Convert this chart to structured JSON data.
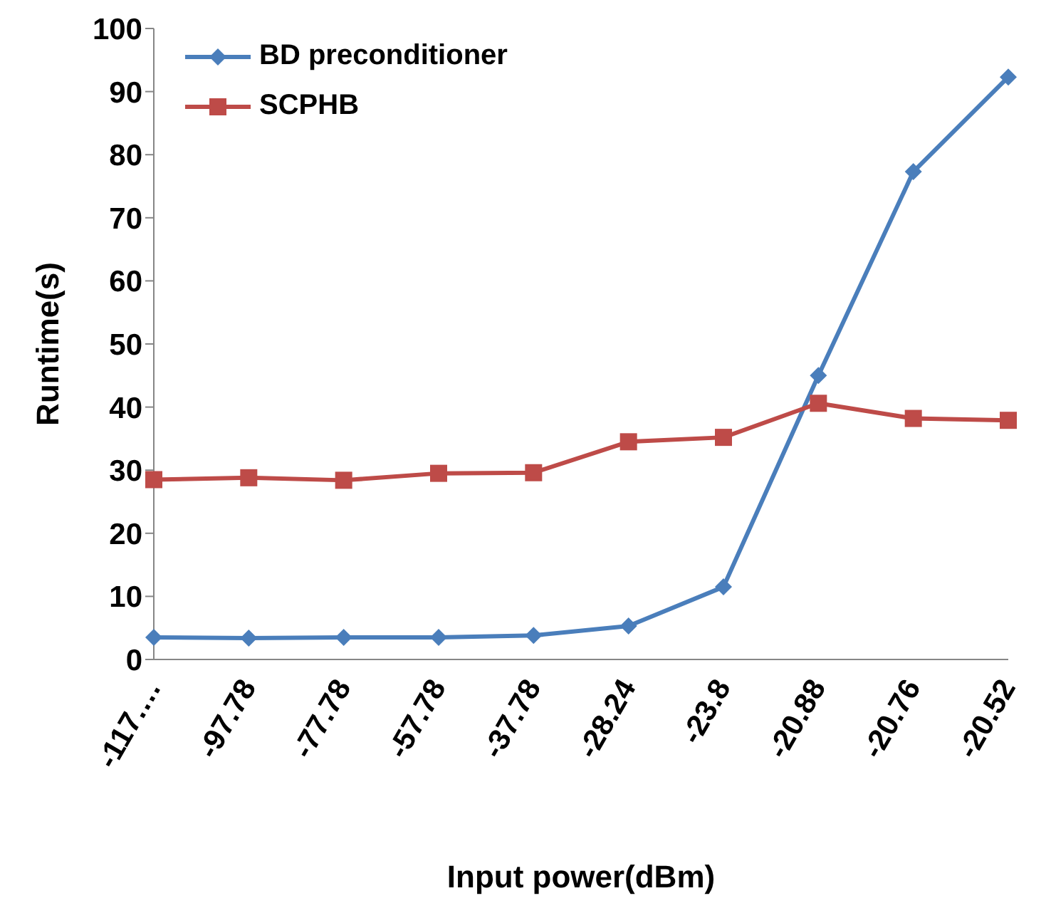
{
  "chart_data": {
    "type": "line",
    "xlabel": "Input power(dBm)",
    "ylabel": "Runtime(s)",
    "categories": [
      "-117.…",
      "-97.78",
      "-77.78",
      "-57.78",
      "-37.78",
      "-28.24",
      "-23.8",
      "-20.88",
      "-20.76",
      "-20.52"
    ],
    "series": [
      {
        "name": "BD preconditioner",
        "color": "#4a7ebb",
        "marker": "diamond",
        "values": [
          3.5,
          3.4,
          3.5,
          3.5,
          3.8,
          5.3,
          11.5,
          45,
          77.3,
          92.3
        ]
      },
      {
        "name": "SCPHB",
        "color": "#be4b48",
        "marker": "square",
        "values": [
          28.5,
          28.8,
          28.4,
          29.5,
          29.6,
          34.5,
          35.2,
          40.6,
          38.2,
          37.9
        ]
      }
    ],
    "ylim": [
      0,
      100
    ],
    "yticks": [
      0,
      10,
      20,
      30,
      40,
      50,
      60,
      70,
      80,
      90,
      100
    ],
    "grid": false,
    "legend": "top left",
    "line_style": "solid"
  }
}
